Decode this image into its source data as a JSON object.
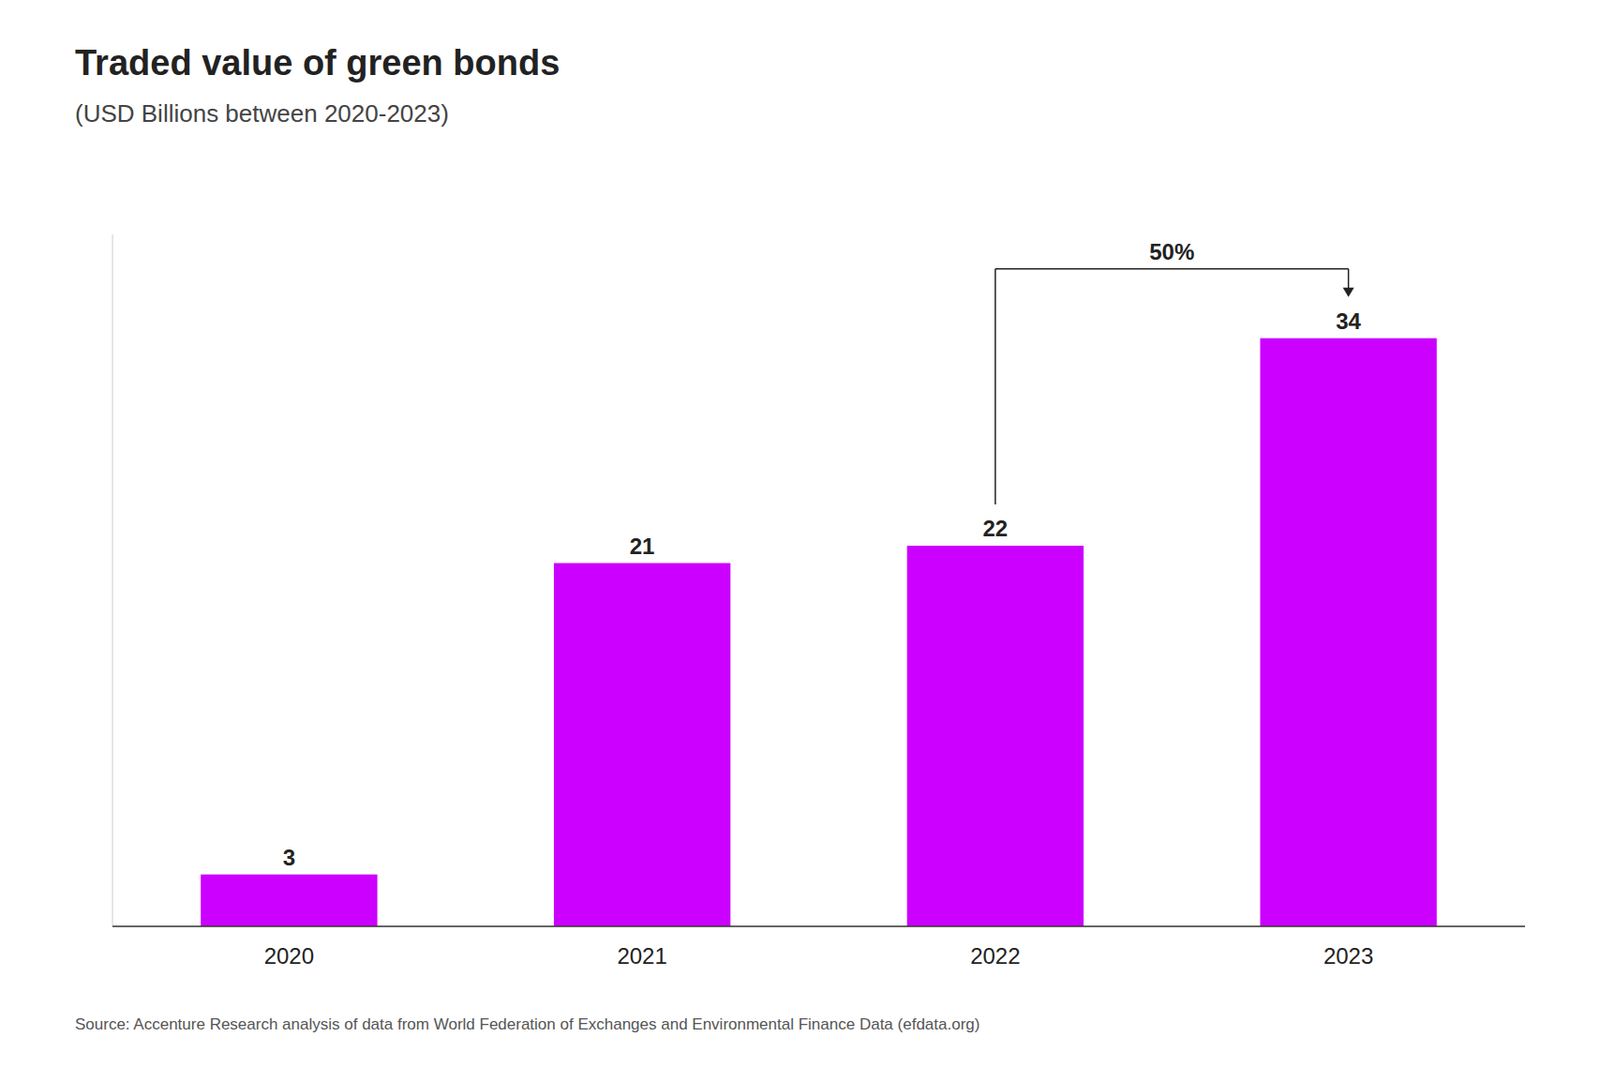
{
  "chart_data": {
    "type": "bar",
    "title": "Traded value of green bonds",
    "subtitle": "(USD Billions between 2020-2023)",
    "source": "Source: Accenture Research analysis of data from World Federation of Exchanges and Environmental Finance Data (efdata.org)",
    "categories": [
      "2020",
      "2021",
      "2022",
      "2023"
    ],
    "values": [
      3,
      21,
      22,
      34
    ],
    "color": "#cc00ff",
    "ylim": [
      0,
      40
    ],
    "grid": false,
    "data_labels": true,
    "tick_labels": "x",
    "annotations": [
      {
        "text": "50%",
        "from": "2022",
        "to": "2023"
      }
    ]
  }
}
